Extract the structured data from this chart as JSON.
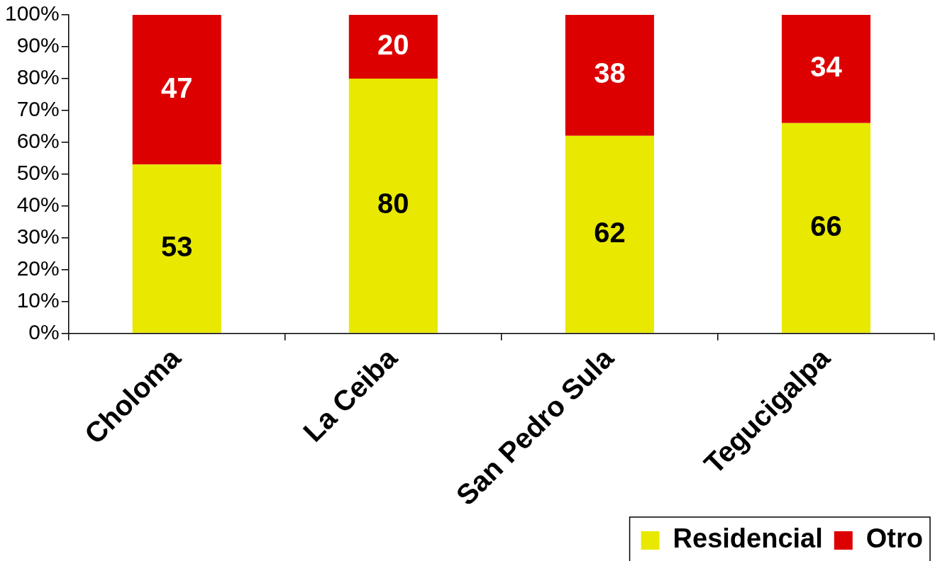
{
  "chart_data": {
    "type": "bar",
    "stacked": true,
    "categories": [
      "Choloma",
      "La Ceiba",
      "San Pedro Sula",
      "Tegucigalpa"
    ],
    "series": [
      {
        "name": "Residencial",
        "color": "#e8e800",
        "values": [
          53,
          80,
          62,
          66
        ]
      },
      {
        "name": "Otro",
        "color": "#dd0000",
        "values": [
          47,
          20,
          38,
          34
        ]
      }
    ],
    "ylim": [
      0,
      100
    ],
    "yticks": [
      {
        "value": 0,
        "label": "0%"
      },
      {
        "value": 10,
        "label": "10%"
      },
      {
        "value": 20,
        "label": "20%"
      },
      {
        "value": 30,
        "label": "30%"
      },
      {
        "value": 40,
        "label": "40%"
      },
      {
        "value": 50,
        "label": "50%"
      },
      {
        "value": 60,
        "label": "60%"
      },
      {
        "value": 70,
        "label": "70%"
      },
      {
        "value": 80,
        "label": "80%"
      },
      {
        "value": 90,
        "label": "90%"
      },
      {
        "value": 100,
        "label": "100%"
      }
    ],
    "grid": false,
    "legend": "bottom right",
    "data_labels": true
  }
}
